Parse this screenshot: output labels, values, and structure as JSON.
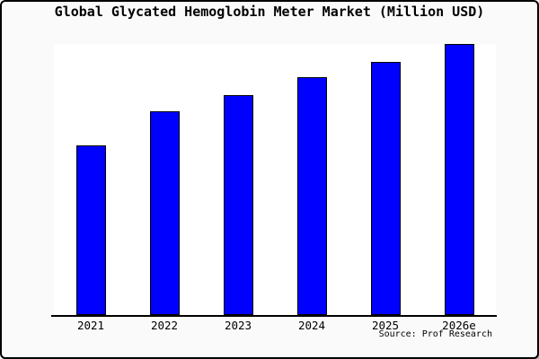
{
  "frame": {
    "title": "Global Glycated Hemoglobin Meter Market (Million USD)",
    "source_label": "Source: Prof Research"
  },
  "chart_data": {
    "type": "bar",
    "title": "Global Glycated Hemoglobin Meter Market (Million USD)",
    "unit": "Million USD",
    "categories": [
      "2021",
      "2022",
      "2023",
      "2024",
      "2025",
      "2026e"
    ],
    "values": [
      62.6,
      75.2,
      81.1,
      87.8,
      93.4,
      100
    ],
    "value_scale": "relative bar heights, 2026e = 100 (chart shows no y-axis labels)",
    "source": "Source: Prof Research",
    "y_axis_visible": false,
    "grid": false,
    "legend": false,
    "colors": {
      "bar_fill": "#0000ff",
      "bar_border": "#000000",
      "plot_background": "#ffffff",
      "page_background": "#fafafa",
      "axis": "#000000",
      "text": "#000000"
    }
  }
}
